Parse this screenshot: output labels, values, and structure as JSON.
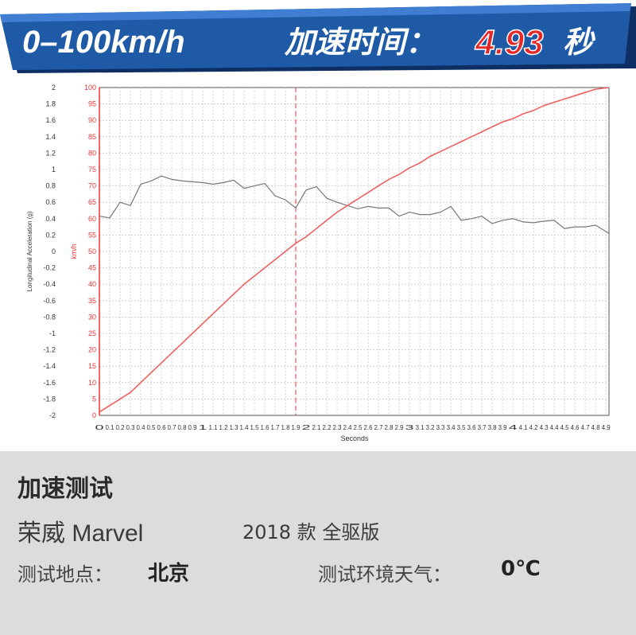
{
  "header": {
    "title_prefix": "0–100km/h",
    "title_cn": "加速时间：",
    "time_value": "4.93",
    "unit": "秒"
  },
  "colors": {
    "banner_blue": "#1f5aa7",
    "banner_dark": "#0e2f63",
    "time_red": "#e3282a",
    "speed_line": "#f06060",
    "accel_line": "#777777",
    "grid": "#cfcfcf",
    "info_bg": "#dcdcdc"
  },
  "info": {
    "section_title": "加速测试",
    "car_name": "荣威 Marvel",
    "car_variant": "2018 款   全驱版",
    "location_label": "测试地点：",
    "location_value": "北京",
    "weather_label": "测试环境天气：",
    "weather_value": "0℃"
  },
  "chart_data": {
    "type": "line",
    "xlabel": "Seconds",
    "y_left_label": "Longitudinal Acceleration (g)",
    "y_right_label": "km/h",
    "xlim": [
      0,
      4.93
    ],
    "x_ticks": [
      "0",
      "0.1",
      "0.2",
      "0.3",
      "0.4",
      "0.5",
      "0.6",
      "0.7",
      "0.8",
      "0.9",
      "1",
      "1.1",
      "1.2",
      "1.3",
      "1.4",
      "1.5",
      "1.6",
      "1.7",
      "1.8",
      "1.9",
      "2",
      "2.1",
      "2.2",
      "2.3",
      "2.4",
      "2.5",
      "2.6",
      "2.7",
      "2.8",
      "2.9",
      "3",
      "3.1",
      "3.2",
      "3.3",
      "3.4",
      "3.5",
      "3.6",
      "3.7",
      "3.8",
      "3.9",
      "4",
      "4.1",
      "4.2",
      "4.3",
      "4.4",
      "4.5",
      "4.6",
      "4.7",
      "4.8",
      "4.9"
    ],
    "accel_axis": {
      "min": -2,
      "max": 2,
      "ticks": [
        "2",
        "1.8",
        "1.6",
        "1.4",
        "1.2",
        "1",
        "0.8",
        "0.6",
        "0.4",
        "0.2",
        "0",
        "-0.2",
        "-0.4",
        "-0.6",
        "-0.8",
        "-1",
        "-1.2",
        "-1.4",
        "-1.6",
        "-1.8",
        "-2"
      ]
    },
    "speed_axis": {
      "min": 0,
      "max": 100,
      "ticks": [
        "100",
        "95",
        "90",
        "85",
        "80",
        "75",
        "70",
        "65",
        "60",
        "55",
        "50",
        "45",
        "40",
        "35",
        "30",
        "25",
        "20",
        "15",
        "10",
        "5",
        "0"
      ]
    },
    "marker_x": 1.9,
    "series": [
      {
        "axis": "speed",
        "x": [
          0,
          0.1,
          0.2,
          0.3,
          0.4,
          0.5,
          0.6,
          0.7,
          0.8,
          0.9,
          1.0,
          1.1,
          1.2,
          1.3,
          1.4,
          1.5,
          1.6,
          1.7,
          1.8,
          1.9,
          2.0,
          2.1,
          2.2,
          2.3,
          2.4,
          2.5,
          2.6,
          2.7,
          2.8,
          2.9,
          3.0,
          3.1,
          3.2,
          3.3,
          3.4,
          3.5,
          3.6,
          3.7,
          3.8,
          3.9,
          4.0,
          4.1,
          4.2,
          4.3,
          4.4,
          4.5,
          4.6,
          4.7,
          4.8,
          4.93
        ],
        "y": [
          1,
          3,
          5,
          7,
          10,
          13,
          16,
          19,
          22,
          25,
          28,
          31,
          34,
          37,
          40,
          42.5,
          45,
          47.5,
          50,
          52.5,
          54.5,
          57,
          59.5,
          62,
          64,
          66,
          68,
          70,
          72,
          73.5,
          75.5,
          77,
          79,
          80.5,
          82,
          83.5,
          85,
          86.5,
          88,
          89.5,
          90.5,
          92,
          93,
          94.5,
          95.5,
          96.5,
          97.5,
          98.5,
          99.5,
          100
        ]
      },
      {
        "axis": "accel",
        "x": [
          0,
          0.1,
          0.2,
          0.3,
          0.4,
          0.5,
          0.6,
          0.7,
          0.8,
          0.9,
          1.0,
          1.1,
          1.2,
          1.3,
          1.4,
          1.5,
          1.6,
          1.7,
          1.8,
          1.85,
          1.9,
          2.0,
          2.1,
          2.2,
          2.3,
          2.4,
          2.5,
          2.6,
          2.7,
          2.8,
          2.9,
          3.0,
          3.1,
          3.2,
          3.3,
          3.4,
          3.5,
          3.6,
          3.7,
          3.8,
          3.9,
          4.0,
          4.1,
          4.2,
          4.3,
          4.4,
          4.5,
          4.6,
          4.7,
          4.8,
          4.93
        ],
        "y": [
          0.43,
          0.41,
          0.6,
          0.56,
          0.82,
          0.86,
          0.92,
          0.88,
          0.86,
          0.85,
          0.84,
          0.82,
          0.84,
          0.87,
          0.77,
          0.8,
          0.83,
          0.68,
          0.63,
          0.58,
          0.53,
          0.75,
          0.79,
          0.65,
          0.6,
          0.56,
          0.52,
          0.55,
          0.53,
          0.53,
          0.43,
          0.48,
          0.45,
          0.45,
          0.48,
          0.55,
          0.38,
          0.4,
          0.43,
          0.34,
          0.38,
          0.4,
          0.36,
          0.35,
          0.37,
          0.38,
          0.28,
          0.3,
          0.3,
          0.32,
          0.22
        ]
      }
    ]
  }
}
